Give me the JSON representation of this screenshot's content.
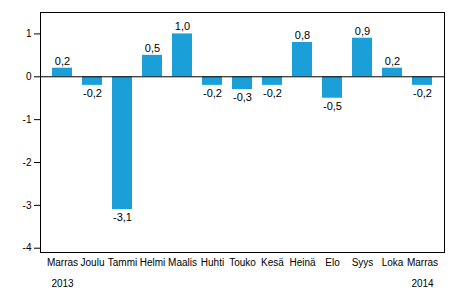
{
  "chart_data": {
    "type": "bar",
    "categories": [
      "Marras",
      "Joulu",
      "Tammi",
      "Helmi",
      "Maalis",
      "Huhti",
      "Touko",
      "Kesä",
      "Heinä",
      "Elo",
      "Syys",
      "Loka",
      "Marras"
    ],
    "values": [
      0.2,
      -0.2,
      -3.1,
      0.5,
      1.0,
      -0.2,
      -0.3,
      -0.2,
      0.8,
      -0.5,
      0.9,
      0.2,
      -0.2
    ],
    "value_labels": [
      "0,2",
      "-0,2",
      "-3,1",
      "0,5",
      "1,0",
      "-0,2",
      "-0,3",
      "-0,2",
      "0,8",
      "-0,5",
      "0,9",
      "0,2",
      "-0,2"
    ],
    "data_labels": true,
    "color": "#1a9fd9",
    "ylim": [
      -4.1,
      1.5
    ],
    "yticks": [
      -4,
      -3,
      -2,
      -1,
      0,
      1
    ],
    "grid": false,
    "annotations": [
      {
        "text": "2013",
        "x": 0
      },
      {
        "text": "2014",
        "x": 12
      }
    ]
  }
}
